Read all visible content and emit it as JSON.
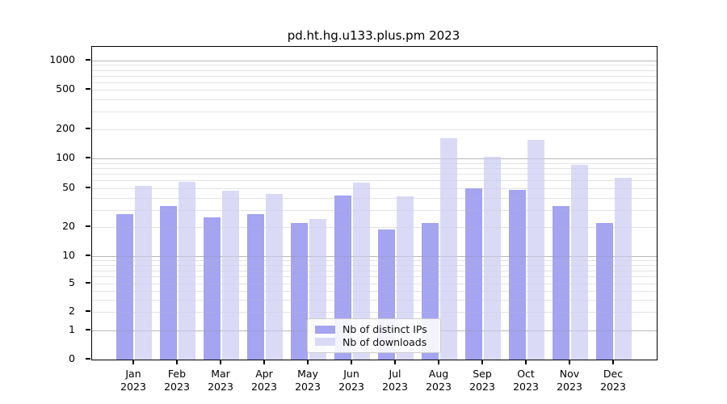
{
  "chart_data": {
    "type": "bar",
    "title": "pd.ht.hg.u133.plus.pm 2023",
    "categories": [
      "Jan",
      "Feb",
      "Mar",
      "Apr",
      "May",
      "Jun",
      "Jul",
      "Aug",
      "Sep",
      "Oct",
      "Nov",
      "Dec"
    ],
    "category_year": "2023",
    "series": [
      {
        "name": "Nb of distinct IPs",
        "color": "#a4a4f1",
        "values": [
          27,
          33,
          25,
          27,
          22,
          42,
          19,
          22,
          50,
          48,
          33,
          22
        ]
      },
      {
        "name": "Nb of downloads",
        "color": "#dadaf7",
        "values": [
          53,
          58,
          47,
          44,
          24,
          57,
          41,
          161,
          104,
          156,
          86,
          64
        ]
      }
    ],
    "y_ticks": [
      1000,
      500,
      200,
      100,
      50,
      20,
      10,
      5,
      2,
      1,
      0
    ],
    "y_minor_gridlines": [
      2,
      3,
      4,
      5,
      6,
      7,
      8,
      9,
      20,
      30,
      40,
      50,
      60,
      70,
      80,
      90,
      200,
      300,
      400,
      500,
      600,
      700,
      800,
      900
    ],
    "y_major_gridlines": [
      1,
      10,
      100,
      1000
    ],
    "xlabel": "",
    "ylabel": "",
    "y_scale": "symlog",
    "ylim": [
      0,
      1400
    ],
    "grid": true,
    "legend_position": "bottom-center-inside"
  }
}
